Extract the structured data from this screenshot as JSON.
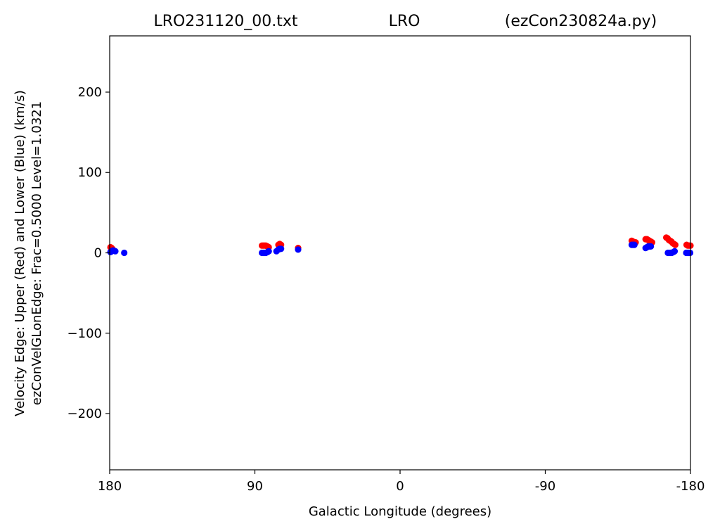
{
  "chart_data": {
    "type": "scatter",
    "title_left": "LRO231120_00.txt",
    "title_center": "LRO",
    "title_right": "(ezCon230824a.py)",
    "xlabel": "Galactic Longitude (degrees)",
    "ylabel_line1": "Velocity Edge: Upper (Red) and Lower (Blue) (km/s)",
    "ylabel_line2": "ezConVelGLonEdge: Frac=0.5000 Level=1.0321",
    "xlim": [
      180,
      -180
    ],
    "ylim": [
      -270,
      270
    ],
    "x_ticks": [
      {
        "value": 180,
        "label": "180"
      },
      {
        "value": 90,
        "label": "90"
      },
      {
        "value": 0,
        "label": "0"
      },
      {
        "value": -90,
        "label": "-90"
      },
      {
        "value": -180,
        "label": "-180"
      }
    ],
    "y_ticks": [
      {
        "value": 200,
        "label": "200"
      },
      {
        "value": 100,
        "label": "100"
      },
      {
        "value": 0,
        "label": "0"
      },
      {
        "value": -100,
        "label": "−100"
      },
      {
        "value": -200,
        "label": "−200"
      }
    ],
    "grid": false,
    "series": [
      {
        "color": "#ff0000",
        "points": [
          [
            179.5,
            7
          ],
          [
            178.8,
            6
          ],
          [
            178,
            4
          ],
          [
            85.6,
            9
          ],
          [
            84.8,
            9
          ],
          [
            84,
            9
          ],
          [
            83.2,
            9
          ],
          [
            82.2,
            8
          ],
          [
            81.4,
            7
          ],
          [
            75.4,
            10
          ],
          [
            74.6,
            11
          ],
          [
            73.8,
            10
          ],
          [
            63.2,
            6
          ],
          [
            -143.6,
            15
          ],
          [
            -144.4,
            14
          ],
          [
            -145.2,
            13
          ],
          [
            -146,
            13
          ],
          [
            -152.2,
            17
          ],
          [
            -153,
            17
          ],
          [
            -153.8,
            16
          ],
          [
            -154.6,
            15
          ],
          [
            -155.4,
            14
          ],
          [
            -156.2,
            13
          ],
          [
            -165,
            19
          ],
          [
            -165.8,
            18
          ],
          [
            -166.6,
            16
          ],
          [
            -167.4,
            15
          ],
          [
            -168.2,
            14
          ],
          [
            -169,
            12
          ],
          [
            -169.8,
            11
          ],
          [
            -170.6,
            10
          ],
          [
            -177.6,
            10
          ],
          [
            -178.4,
            9
          ],
          [
            -179.2,
            9
          ],
          [
            -180,
            9
          ]
        ]
      },
      {
        "color": "#0000ff",
        "points": [
          [
            179.5,
            1
          ],
          [
            178.7,
            2
          ],
          [
            177.9,
            3
          ],
          [
            176.5,
            2
          ],
          [
            171,
            0
          ],
          [
            85.6,
            0
          ],
          [
            84.8,
            0
          ],
          [
            84,
            0
          ],
          [
            83.2,
            0
          ],
          [
            82.2,
            1
          ],
          [
            81.4,
            2
          ],
          [
            76.6,
            2
          ],
          [
            75.4,
            4
          ],
          [
            74.6,
            5
          ],
          [
            73.8,
            5
          ],
          [
            63.2,
            4
          ],
          [
            -143.6,
            10
          ],
          [
            -144.4,
            10
          ],
          [
            -145.2,
            10
          ],
          [
            -152.2,
            6
          ],
          [
            -153,
            7
          ],
          [
            -153.8,
            8
          ],
          [
            -154.6,
            8
          ],
          [
            -155.4,
            8
          ],
          [
            -166,
            0
          ],
          [
            -166.8,
            0
          ],
          [
            -167.6,
            0
          ],
          [
            -168.4,
            0
          ],
          [
            -169.4,
            1
          ],
          [
            -170.2,
            2
          ],
          [
            -177.4,
            0
          ],
          [
            -178.2,
            0
          ],
          [
            -179,
            0
          ],
          [
            -179.8,
            0
          ]
        ]
      }
    ]
  }
}
